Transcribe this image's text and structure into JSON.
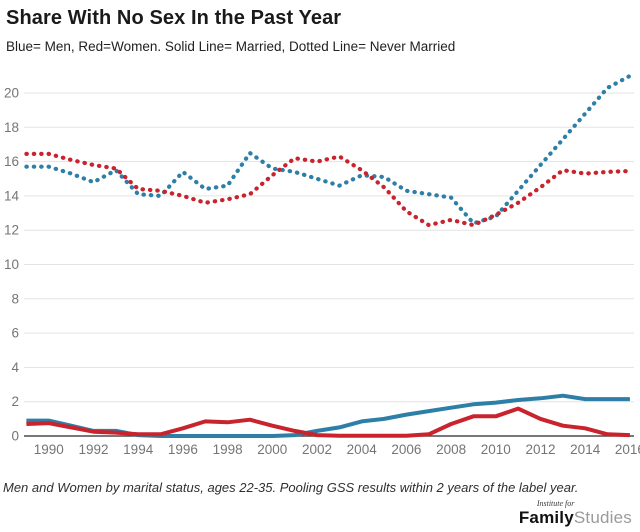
{
  "header": {
    "title": "Share With No Sex In the Past Year",
    "subtitle": "Blue= Men, Red=Women. Solid Line= Married, Dotted Line= Never Married"
  },
  "footer": {
    "note": "Men and Women by marital status, ages 22-35. Pooling GSS results within 2 years of the label year."
  },
  "logo": {
    "top_line": "Institute for",
    "name_bold": "Family",
    "name_light": "Studies"
  },
  "colors": {
    "men_blue": "#2d7fa7",
    "women_red": "#c9232d",
    "gridline": "#e3e3e3",
    "axis_line": "#4a4a4a",
    "tick_label": "#757575"
  },
  "chart_data": {
    "type": "line",
    "title": "Share With No Sex In the Past Year",
    "xlabel": "",
    "ylabel": "",
    "x_ticks": [
      1990,
      1992,
      1994,
      1996,
      1998,
      2000,
      2002,
      2004,
      2006,
      2008,
      2010,
      2012,
      2014,
      2016
    ],
    "y_ticks": [
      0,
      2,
      4,
      6,
      8,
      10,
      12,
      14,
      16,
      18,
      20
    ],
    "xlim": [
      1989,
      2016
    ],
    "ylim": [
      0,
      21.5
    ],
    "grid": true,
    "legend_position": "none (explained in subtitle)",
    "x": [
      1989,
      1990,
      1991,
      1992,
      1993,
      1994,
      1995,
      1996,
      1997,
      1998,
      1999,
      2000,
      2001,
      2002,
      2003,
      2004,
      2005,
      2006,
      2007,
      2008,
      2009,
      2010,
      2011,
      2012,
      2013,
      2014,
      2015,
      2016
    ],
    "series": [
      {
        "name": "Men, Never Married",
        "color": "#2d7fa7",
        "style": "dotted",
        "values": [
          15.7,
          15.7,
          15.3,
          14.8,
          15.5,
          14.1,
          14.0,
          15.4,
          14.4,
          14.6,
          16.5,
          15.6,
          15.4,
          15.0,
          14.6,
          15.2,
          15.1,
          14.3,
          14.1,
          13.9,
          12.4,
          12.8,
          14.3,
          15.8,
          17.3,
          18.8,
          20.3,
          21.0
        ]
      },
      {
        "name": "Women, Never Married",
        "color": "#c9232d",
        "style": "dotted",
        "values": [
          16.45,
          16.45,
          16.1,
          15.8,
          15.6,
          14.4,
          14.3,
          14.0,
          13.6,
          13.8,
          14.1,
          15.2,
          16.2,
          16.0,
          16.3,
          15.5,
          14.5,
          13.1,
          12.3,
          12.6,
          12.3,
          12.9,
          13.6,
          14.5,
          15.5,
          15.3,
          15.4,
          15.45
        ]
      },
      {
        "name": "Men, Married",
        "color": "#2d7fa7",
        "style": "solid",
        "values": [
          0.9,
          0.9,
          0.6,
          0.3,
          0.3,
          0.05,
          0,
          0,
          0,
          0,
          0,
          0,
          0.05,
          0.3,
          0.5,
          0.85,
          1.0,
          1.25,
          1.45,
          1.65,
          1.85,
          1.95,
          2.1,
          2.2,
          2.35,
          2.15,
          2.15,
          2.15
        ]
      },
      {
        "name": "Women, Married",
        "color": "#c9232d",
        "style": "solid",
        "values": [
          0.7,
          0.75,
          0.5,
          0.25,
          0.2,
          0.1,
          0.1,
          0.45,
          0.85,
          0.8,
          0.95,
          0.6,
          0.3,
          0.05,
          0.02,
          0.02,
          0.02,
          0.02,
          0.1,
          0.7,
          1.15,
          1.15,
          1.6,
          1.0,
          0.6,
          0.45,
          0.1,
          0.05
        ]
      }
    ]
  }
}
